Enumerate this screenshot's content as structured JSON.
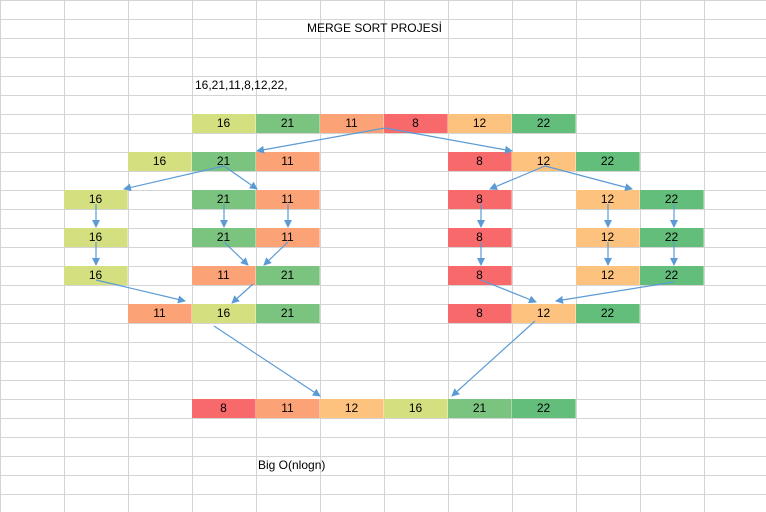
{
  "sheet": {
    "title": "MERGE SORT PROJESİ",
    "input_text": "16,21,11,8,12,22,",
    "complexity_text": "Big O(nlogn)"
  },
  "colors": {
    "8": "#F8696B",
    "11": "#FBA276",
    "12": "#FDC27D",
    "16": "#D4E07F",
    "21": "#7AC47F",
    "22": "#63BE7B"
  },
  "rows": {
    "r0": [
      "16",
      "21",
      "11",
      "8",
      "12",
      "22"
    ],
    "r1_left": [
      "16",
      "21",
      "11"
    ],
    "r1_right": [
      "8",
      "12",
      "22"
    ],
    "r2_a": [
      "16"
    ],
    "r2_b": [
      "21",
      "11"
    ],
    "r2_c": [
      "8"
    ],
    "r2_d": [
      "12",
      "22"
    ],
    "r3_a": [
      "16"
    ],
    "r3_b": [
      "21",
      "11"
    ],
    "r3_c": [
      "8"
    ],
    "r3_d": [
      "12",
      "22"
    ],
    "r4_a": [
      "16"
    ],
    "r4_b": [
      "11",
      "21"
    ],
    "r4_c": [
      "8"
    ],
    "r4_d": [
      "12",
      "22"
    ],
    "r5_left": [
      "11",
      "16",
      "21"
    ],
    "r5_right": [
      "8",
      "12",
      "22"
    ],
    "r6": [
      "8",
      "11",
      "12",
      "16",
      "21",
      "22"
    ]
  }
}
